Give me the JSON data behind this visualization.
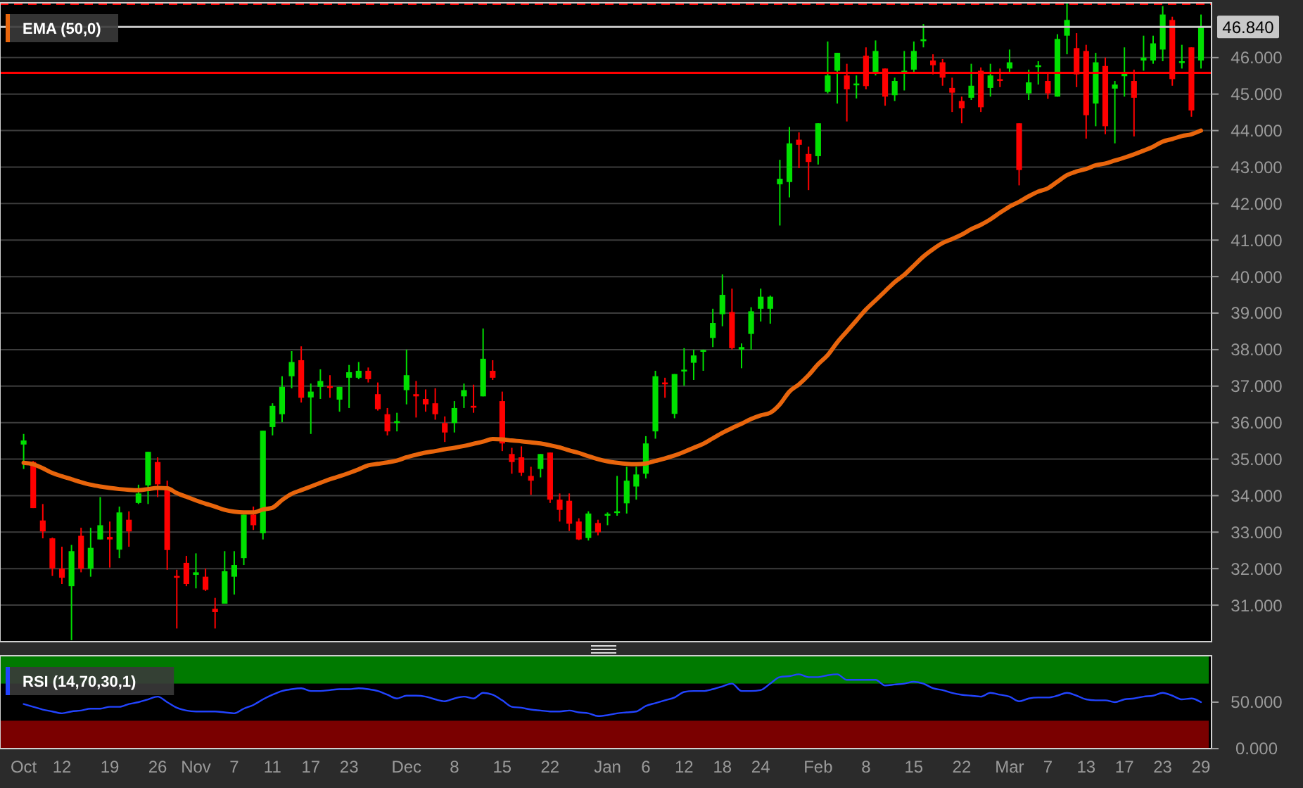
{
  "chart_data": [
    {
      "type": "candlestick",
      "categories": [
        null,
        null,
        null,
        null,
        null,
        null,
        null,
        null,
        null,
        null,
        null,
        null,
        null,
        null,
        null,
        null,
        null,
        null,
        null,
        null,
        null,
        null,
        null,
        null,
        null,
        null,
        null,
        null,
        null,
        null,
        null,
        null,
        null,
        null,
        null,
        null,
        null,
        null,
        null,
        null,
        null,
        null,
        null,
        null,
        null,
        null,
        null,
        null,
        null,
        null,
        null,
        null,
        null,
        null,
        null,
        null,
        null,
        null,
        null,
        null,
        null,
        null,
        null,
        null,
        null,
        null,
        null,
        null,
        null,
        null,
        null,
        null,
        null,
        null,
        null,
        null,
        null,
        null,
        null,
        null,
        null,
        null,
        null,
        null,
        null,
        null,
        null,
        null,
        null,
        null,
        null,
        null,
        null,
        null,
        null,
        null,
        null,
        null,
        null,
        null,
        null,
        null,
        null,
        null,
        null,
        null,
        null,
        null,
        null,
        null,
        null,
        null,
        null,
        null,
        null,
        null,
        null,
        null,
        null,
        null,
        null,
        null,
        null,
        null
      ],
      "ohlc": [
        [
          35.4,
          35.69,
          34.73,
          35.51
        ],
        [
          34.92,
          34.95,
          33.66,
          33.66
        ],
        [
          33.32,
          33.77,
          32.83,
          33.02
        ],
        [
          32.83,
          32.85,
          31.8,
          32.01
        ],
        [
          32.0,
          32.6,
          31.58,
          31.75
        ],
        [
          31.52,
          32.65,
          30.04,
          32.48
        ],
        [
          32.9,
          33.12,
          31.9,
          32.0
        ],
        [
          32.0,
          33.12,
          31.78,
          32.57
        ],
        [
          32.8,
          33.96,
          32.8,
          33.19
        ],
        [
          32.87,
          33.29,
          32.03,
          32.8
        ],
        [
          32.52,
          33.7,
          32.29,
          33.54
        ],
        [
          33.34,
          33.57,
          32.6,
          33.02
        ],
        [
          33.8,
          34.3,
          33.77,
          34.06
        ],
        [
          34.28,
          35.2,
          33.77,
          35.2
        ],
        [
          34.92,
          35.05,
          33.96,
          34.31
        ],
        [
          34.18,
          34.41,
          31.97,
          32.51
        ],
        [
          31.8,
          31.97,
          30.36,
          31.75
        ],
        [
          32.16,
          32.35,
          31.52,
          31.58
        ],
        [
          31.83,
          32.42,
          31.46,
          31.9
        ],
        [
          31.78,
          32.0,
          31.39,
          31.42
        ],
        [
          30.9,
          31.2,
          30.36,
          30.81
        ],
        [
          31.04,
          32.48,
          31.04,
          31.93
        ],
        [
          31.78,
          32.48,
          31.29,
          32.1
        ],
        [
          32.29,
          33.48,
          32.1,
          33.48
        ],
        [
          33.48,
          33.7,
          33.06,
          33.19
        ],
        [
          32.97,
          35.78,
          32.8,
          35.78
        ],
        [
          35.88,
          36.53,
          35.65,
          36.46
        ],
        [
          36.23,
          37.27,
          36.01,
          36.98
        ],
        [
          37.27,
          37.96,
          36.94,
          37.66
        ],
        [
          37.71,
          38.09,
          36.55,
          36.68
        ],
        [
          36.69,
          37.07,
          35.69,
          36.85
        ],
        [
          36.98,
          37.46,
          36.65,
          37.14
        ],
        [
          37.0,
          37.3,
          36.68,
          36.95
        ],
        [
          36.63,
          36.98,
          36.3,
          36.98
        ],
        [
          37.23,
          37.58,
          36.4,
          37.38
        ],
        [
          37.23,
          37.66,
          37.19,
          37.42
        ],
        [
          37.42,
          37.51,
          37.1,
          37.19
        ],
        [
          36.78,
          37.1,
          36.33,
          36.37
        ],
        [
          36.23,
          36.4,
          35.65,
          35.76
        ],
        [
          35.99,
          36.27,
          35.76,
          36.04
        ],
        [
          36.89,
          38.0,
          36.5,
          37.3
        ],
        [
          36.78,
          37.14,
          36.14,
          36.72
        ],
        [
          36.65,
          36.91,
          36.3,
          36.5
        ],
        [
          36.53,
          36.94,
          36.08,
          36.23
        ],
        [
          35.99,
          36.17,
          35.47,
          35.73
        ],
        [
          35.99,
          36.59,
          35.73,
          36.4
        ],
        [
          36.72,
          37.07,
          36.4,
          36.89
        ],
        [
          36.46,
          37.04,
          36.27,
          36.41
        ],
        [
          36.72,
          38.58,
          36.72,
          37.75
        ],
        [
          37.42,
          37.71,
          37.17,
          37.23
        ],
        [
          36.59,
          36.85,
          35.22,
          35.43
        ],
        [
          35.14,
          35.31,
          34.6,
          34.92
        ],
        [
          35.05,
          35.35,
          34.54,
          34.63
        ],
        [
          34.54,
          34.79,
          34.02,
          34.41
        ],
        [
          34.73,
          35.14,
          34.5,
          35.14
        ],
        [
          35.18,
          35.18,
          33.8,
          33.89
        ],
        [
          33.89,
          34.06,
          33.29,
          33.61
        ],
        [
          33.86,
          34.06,
          33.03,
          33.23
        ],
        [
          33.29,
          33.38,
          32.78,
          32.8
        ],
        [
          32.84,
          33.57,
          32.77,
          33.51
        ],
        [
          33.25,
          33.34,
          32.91,
          33.0
        ],
        [
          33.45,
          33.54,
          33.19,
          33.5
        ],
        [
          33.53,
          34.54,
          33.45,
          33.57
        ],
        [
          33.79,
          34.79,
          33.51,
          34.41
        ],
        [
          34.25,
          34.79,
          33.89,
          34.58
        ],
        [
          34.6,
          35.63,
          34.47,
          35.43
        ],
        [
          35.76,
          37.42,
          35.56,
          37.27
        ],
        [
          37.1,
          37.23,
          36.68,
          37.05
        ],
        [
          36.24,
          37.33,
          36.12,
          37.33
        ],
        [
          37.4,
          38.04,
          37.01,
          37.45
        ],
        [
          37.64,
          38.0,
          37.17,
          37.84
        ],
        [
          37.94,
          38.0,
          37.42,
          37.99
        ],
        [
          38.32,
          39.12,
          38.07,
          38.73
        ],
        [
          38.97,
          40.06,
          38.64,
          39.5
        ],
        [
          39.03,
          39.67,
          38.0,
          38.04
        ],
        [
          38.0,
          38.17,
          37.49,
          38.07
        ],
        [
          38.43,
          39.16,
          38.0,
          39.05
        ],
        [
          39.12,
          39.67,
          38.77,
          39.45
        ],
        [
          39.12,
          39.48,
          38.71,
          39.45
        ],
        [
          42.53,
          43.2,
          41.4,
          42.68
        ],
        [
          42.59,
          44.1,
          42.17,
          43.65
        ],
        [
          43.75,
          43.95,
          42.97,
          43.61
        ],
        [
          43.36,
          43.56,
          42.37,
          43.14
        ],
        [
          43.3,
          44.2,
          43.07,
          44.2
        ],
        [
          45.06,
          46.44,
          45.02,
          45.51
        ],
        [
          45.64,
          46.13,
          44.74,
          46.13
        ],
        [
          45.51,
          45.83,
          44.25,
          45.13
        ],
        [
          45.24,
          45.51,
          44.88,
          45.29
        ],
        [
          46.05,
          46.28,
          45.13,
          45.22
        ],
        [
          45.58,
          46.47,
          45.51,
          46.18
        ],
        [
          45.7,
          45.7,
          44.68,
          44.93
        ],
        [
          44.97,
          45.45,
          44.81,
          45.36
        ],
        [
          45.58,
          46.18,
          45.1,
          45.64
        ],
        [
          45.67,
          46.44,
          45.58,
          46.18
        ],
        [
          46.45,
          46.92,
          46.28,
          46.5
        ],
        [
          45.92,
          46.09,
          45.54,
          45.79
        ],
        [
          45.87,
          45.96,
          45.23,
          45.45
        ],
        [
          45.17,
          45.45,
          44.51,
          45.04
        ],
        [
          44.81,
          44.93,
          44.2,
          44.61
        ],
        [
          44.9,
          45.83,
          44.84,
          45.23
        ],
        [
          45.64,
          45.73,
          44.51,
          44.64
        ],
        [
          45.17,
          45.83,
          44.93,
          45.51
        ],
        [
          45.41,
          45.7,
          45.19,
          45.36
        ],
        [
          45.7,
          46.22,
          45.61,
          45.87
        ],
        [
          44.2,
          44.2,
          42.5,
          42.92
        ],
        [
          45.02,
          45.67,
          44.84,
          45.32
        ],
        [
          45.74,
          45.9,
          45.26,
          45.79
        ],
        [
          45.36,
          45.58,
          44.87,
          45.02
        ],
        [
          44.93,
          46.64,
          44.93,
          46.51
        ],
        [
          46.6,
          47.5,
          46.09,
          47.03
        ],
        [
          46.26,
          46.67,
          45.19,
          45.54
        ],
        [
          46.18,
          46.35,
          43.78,
          44.42
        ],
        [
          44.74,
          46.13,
          44.12,
          45.87
        ],
        [
          45.77,
          46.0,
          43.9,
          44.12
        ],
        [
          45.15,
          45.36,
          43.65,
          45.26
        ],
        [
          45.49,
          46.28,
          44.93,
          45.61
        ],
        [
          45.36,
          45.67,
          43.84,
          44.9
        ],
        [
          45.92,
          46.6,
          45.64,
          46.0
        ],
        [
          45.92,
          46.6,
          45.83,
          46.39
        ],
        [
          46.22,
          47.41,
          45.9,
          47.18
        ],
        [
          47.03,
          47.12,
          45.23,
          45.41
        ],
        [
          45.85,
          46.35,
          45.7,
          45.9
        ],
        [
          46.28,
          46.28,
          44.38,
          44.55
        ],
        [
          45.92,
          47.18,
          45.7,
          46.84
        ]
      ],
      "series": [
        {
          "type": "line",
          "name": "EMA (50,0)",
          "color": "#e8650c",
          "values": [
            34.9,
            34.86,
            34.75,
            34.62,
            34.53,
            34.45,
            34.37,
            34.3,
            34.25,
            34.21,
            34.18,
            34.16,
            34.15,
            34.18,
            34.21,
            34.2,
            34.07,
            33.97,
            33.87,
            33.78,
            33.7,
            33.61,
            33.56,
            33.54,
            33.54,
            33.62,
            33.67,
            33.88,
            34.05,
            34.15,
            34.25,
            34.35,
            34.45,
            34.53,
            34.62,
            34.72,
            34.83,
            34.87,
            34.91,
            34.96,
            35.05,
            35.12,
            35.18,
            35.22,
            35.27,
            35.31,
            35.36,
            35.42,
            35.48,
            35.55,
            35.54,
            35.51,
            35.49,
            35.46,
            35.43,
            35.38,
            35.32,
            35.24,
            35.17,
            35.08,
            35.0,
            34.94,
            34.9,
            34.87,
            34.86,
            34.88,
            34.95,
            35.02,
            35.1,
            35.2,
            35.31,
            35.42,
            35.57,
            35.72,
            35.85,
            35.97,
            36.1,
            36.2,
            36.27,
            36.5,
            36.85,
            37.05,
            37.3,
            37.6,
            37.85,
            38.2,
            38.5,
            38.8,
            39.1,
            39.35,
            39.6,
            39.85,
            40.05,
            40.3,
            40.55,
            40.75,
            40.92,
            41.03,
            41.15,
            41.3,
            41.42,
            41.57,
            41.75,
            41.92,
            42.05,
            42.2,
            42.33,
            42.42,
            42.6,
            42.78,
            42.88,
            42.95,
            43.05,
            43.1,
            43.18,
            43.26,
            43.35,
            43.45,
            43.56,
            43.7,
            43.77,
            43.85,
            43.9,
            44.0
          ]
        }
      ],
      "ylim": [
        30,
        47.5
      ],
      "yticks": [
        {
          "value": 31,
          "label": "31.000"
        },
        {
          "value": 32,
          "label": "32.000"
        },
        {
          "value": 33,
          "label": "33.000"
        },
        {
          "value": 34,
          "label": "34.000"
        },
        {
          "value": 35,
          "label": "35.000"
        },
        {
          "value": 36,
          "label": "36.000"
        },
        {
          "value": 37,
          "label": "37.000"
        },
        {
          "value": 38,
          "label": "38.000"
        },
        {
          "value": 39,
          "label": "39.000"
        },
        {
          "value": 40,
          "label": "40.000"
        },
        {
          "value": 41,
          "label": "41.000"
        },
        {
          "value": 42,
          "label": "42.000"
        },
        {
          "value": 43,
          "label": "43.000"
        },
        {
          "value": 44,
          "label": "44.000"
        },
        {
          "value": 45,
          "label": "45.000"
        },
        {
          "value": 46,
          "label": "46.000"
        }
      ],
      "ref_lines": [
        {
          "axis": "y",
          "value": 45.58,
          "color": "#ff0000",
          "line_style": "solid"
        },
        {
          "axis": "y",
          "value": 46.84,
          "label": "46.840",
          "color": "#c8c8c8",
          "line_style": "solid"
        },
        {
          "axis": "y",
          "value": 47.5,
          "color": "#ff0000",
          "line_style": "dashed"
        }
      ],
      "grid": "y",
      "legend": "top left",
      "tick_labels": "y"
    },
    {
      "type": "line",
      "categories": [
        "Oct",
        null,
        null,
        null,
        "12",
        null,
        null,
        null,
        null,
        "19",
        null,
        null,
        null,
        null,
        "26",
        null,
        null,
        null,
        "Nov",
        null,
        null,
        null,
        "7",
        null,
        null,
        null,
        "11",
        null,
        null,
        null,
        "17",
        null,
        null,
        null,
        "23",
        null,
        null,
        null,
        null,
        null,
        "Dec",
        null,
        null,
        null,
        null,
        "8",
        null,
        null,
        null,
        null,
        "15",
        null,
        null,
        null,
        null,
        "22",
        null,
        null,
        null,
        null,
        null,
        "Jan",
        null,
        null,
        null,
        "6",
        null,
        null,
        null,
        "12",
        null,
        null,
        null,
        "18",
        null,
        null,
        null,
        "24",
        null,
        null,
        null,
        null,
        null,
        "Feb",
        null,
        null,
        null,
        null,
        "8",
        null,
        null,
        null,
        null,
        "15",
        null,
        null,
        null,
        null,
        "22",
        null,
        null,
        null,
        null,
        "Mar",
        null,
        null,
        null,
        "7",
        null,
        null,
        null,
        "13",
        null,
        null,
        null,
        "17",
        null,
        null,
        null,
        "23",
        null,
        null,
        null,
        "29"
      ],
      "series": [
        {
          "name": "RSI (14,70,30,1)",
          "color": "#2244ff",
          "values": [
            48,
            45,
            42,
            40,
            38,
            40,
            41,
            43,
            43,
            45,
            45,
            48,
            50,
            53,
            56,
            50,
            44,
            41,
            40,
            40,
            40,
            39,
            38,
            43,
            47,
            53,
            58,
            62,
            64,
            65,
            62,
            62,
            63,
            64,
            64,
            65,
            64,
            62,
            58,
            54,
            57,
            57,
            56,
            53,
            51,
            54,
            56,
            54,
            60,
            58,
            52,
            45,
            44,
            42,
            41,
            40,
            40,
            41,
            39,
            38,
            35,
            36,
            38,
            39,
            40,
            46,
            49,
            52,
            55,
            61,
            62,
            62,
            64,
            67,
            70,
            62,
            62,
            63,
            70,
            77,
            78,
            80,
            77,
            77,
            79,
            80,
            74,
            74,
            74,
            74,
            68,
            69,
            70,
            72,
            70,
            65,
            63,
            60,
            58,
            57,
            56,
            60,
            58,
            56,
            51,
            54,
            55,
            55,
            57,
            60,
            57,
            53,
            52,
            52,
            50,
            53,
            54,
            56,
            57,
            60,
            57,
            53,
            54,
            50
          ]
        }
      ],
      "ylim": [
        0,
        100
      ],
      "yticks": [
        {
          "value": 0,
          "label": "0.000"
        },
        {
          "value": 50,
          "label": "50.000"
        }
      ],
      "bands": [
        {
          "axis": "y",
          "from": 70,
          "to": 100,
          "color": "#007a00"
        },
        {
          "axis": "y",
          "from": 0,
          "to": 30,
          "color": "#7a0000"
        }
      ],
      "legend": "top left"
    }
  ]
}
